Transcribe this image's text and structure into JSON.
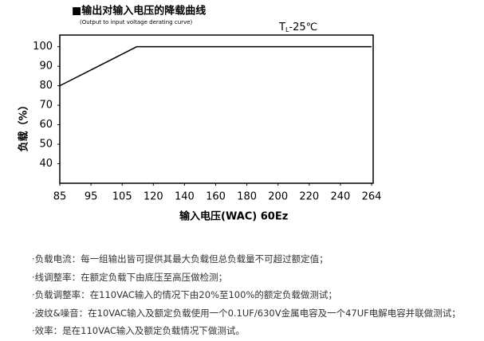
{
  "chart_data": {
    "type": "line",
    "title": "■输出对输入电压的降载曲线",
    "subtitle": "(Output to input voltage derating curve)",
    "annotation": {
      "main": "T",
      "sub": "L",
      "rest": "-25℃"
    },
    "x_label": "输入电压(WAC) 60Ez",
    "y_label": "负载（%）",
    "x": [
      85,
      112,
      264
    ],
    "series": [
      {
        "color": "#000000",
        "values": [
          80,
          100,
          100
        ]
      }
    ],
    "xlim": [
      85,
      264
    ],
    "xticks": [
      85,
      95,
      105,
      120,
      140,
      160,
      180,
      200,
      220,
      240,
      264
    ],
    "ylim": [
      30,
      106
    ],
    "yticks": [
      40,
      50,
      60,
      70,
      80,
      90,
      100
    ],
    "grid": false
  },
  "notes": [
    "负载电流：每一组输出皆可提供其最大负载但总负载量不可超过额定值；",
    "线调整率：在额定负载下由底压至高压做检测；",
    "负载调整率：在110VAC输入的情况下由20%至100%的额定负载做测试；",
    "波纹&噪音：在10VAC输入及额定负载使用一个0.1UF/630V金属电容及一个47UF电解电容并联做测试；",
    "效率：是在110VAC输入及额定负载情况下做测试。"
  ]
}
